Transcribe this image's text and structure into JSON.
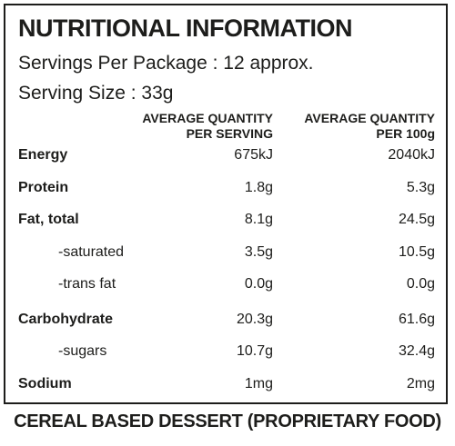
{
  "panel": {
    "title": "NUTRITIONAL INFORMATION",
    "servings": "Servings Per Package : 12 approx.",
    "serving_size": "Serving Size : 33g"
  },
  "columns": {
    "per_serving_line1": "AVERAGE QUANTITY",
    "per_serving_line2": "PER SERVING",
    "per_100g_line1": "AVERAGE QUANTITY",
    "per_100g_line2": "PER 100g"
  },
  "rows": [
    {
      "label": "Energy",
      "per_serving": "675kJ",
      "per_100g": "2040kJ"
    },
    {
      "label": "Protein",
      "per_serving": "1.8g",
      "per_100g": "5.3g"
    },
    {
      "label": "Fat, total",
      "per_serving": "8.1g",
      "per_100g": "24.5g"
    },
    {
      "label": "-saturated",
      "per_serving": "3.5g",
      "per_100g": "10.5g"
    },
    {
      "label": "-trans fat",
      "per_serving": "0.0g",
      "per_100g": "0.0g"
    },
    {
      "label": "Carbohydrate",
      "per_serving": "20.3g",
      "per_100g": "61.6g"
    },
    {
      "label": "-sugars",
      "per_serving": "10.7g",
      "per_100g": "32.4g"
    },
    {
      "label": "Sodium",
      "per_serving": "1mg",
      "per_100g": "2mg"
    }
  ],
  "footer": "CEREAL BASED DESSERT (PROPRIETARY FOOD)"
}
